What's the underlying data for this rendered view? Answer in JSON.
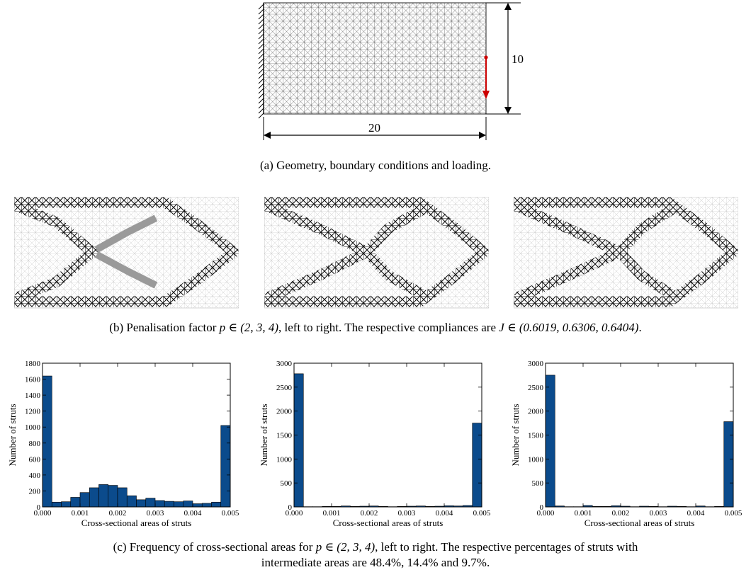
{
  "figure_a": {
    "width_label": "20",
    "height_label": "10",
    "caption": "(a) Geometry, boundary conditions and loading."
  },
  "figure_b": {
    "caption_prefix": "(b) Penalisation factor ",
    "caption_p": "p ∈ (2, 3, 4)",
    "caption_mid": ", left to right. The respective compliances are ",
    "caption_j": "J ∈ (0.6019, 0.6306, 0.6404)",
    "caption_end": ".",
    "penalisation_factors": [
      2,
      3,
      4
    ],
    "compliances": [
      0.6019,
      0.6306,
      0.6404
    ]
  },
  "figure_c": {
    "caption_line1_prefix": "(c) Frequency of cross-sectional areas for ",
    "caption_line1_p": "p ∈ (2, 3, 4)",
    "caption_line1_suffix": ", left to right. The respective percentages of struts with",
    "caption_line2": "intermediate areas are 48.4%, 14.4% and 9.7%."
  },
  "chart_data": [
    {
      "type": "bar",
      "xlabel": "Cross-sectional areas of struts",
      "ylabel": "Number of struts",
      "xlim": [
        0,
        0.005
      ],
      "ylim": [
        0,
        1800
      ],
      "xticks": [
        "0.000",
        "0.001",
        "0.002",
        "0.003",
        "0.004",
        "0.005"
      ],
      "yticks": [
        "0",
        "200",
        "400",
        "600",
        "800",
        "1000",
        "1200",
        "1400",
        "1600",
        "1800"
      ],
      "bin_width": 0.00025,
      "values": [
        1640,
        60,
        65,
        120,
        180,
        240,
        280,
        270,
        240,
        140,
        90,
        110,
        80,
        70,
        65,
        75,
        40,
        45,
        60,
        1020
      ],
      "color": "#0b4b8c"
    },
    {
      "type": "bar",
      "xlabel": "Cross-sectional areas of struts",
      "ylabel": "Number of struts",
      "xlim": [
        0,
        0.005
      ],
      "ylim": [
        0,
        3000
      ],
      "xticks": [
        "0.000",
        "0.001",
        "0.002",
        "0.003",
        "0.004",
        "0.005"
      ],
      "yticks": [
        "0",
        "500",
        "1000",
        "1500",
        "2000",
        "2500",
        "3000"
      ],
      "bin_width": 0.00025,
      "values": [
        2780,
        5,
        5,
        10,
        10,
        20,
        10,
        15,
        20,
        10,
        5,
        10,
        15,
        20,
        10,
        15,
        25,
        20,
        30,
        1750
      ],
      "color": "#0b4b8c"
    },
    {
      "type": "bar",
      "xlabel": "Cross-sectional areas of struts",
      "ylabel": "Number of struts",
      "xlim": [
        0,
        0.005
      ],
      "ylim": [
        0,
        3000
      ],
      "xticks": [
        "0.000",
        "0.001",
        "0.002",
        "0.003",
        "0.004",
        "0.005"
      ],
      "yticks": [
        "0",
        "500",
        "1000",
        "1500",
        "2000",
        "2500",
        "3000"
      ],
      "bin_width": 0.00025,
      "values": [
        2750,
        20,
        5,
        5,
        30,
        10,
        10,
        25,
        15,
        5,
        15,
        10,
        5,
        15,
        10,
        5,
        20,
        5,
        10,
        1780
      ],
      "color": "#0b4b8c"
    }
  ]
}
